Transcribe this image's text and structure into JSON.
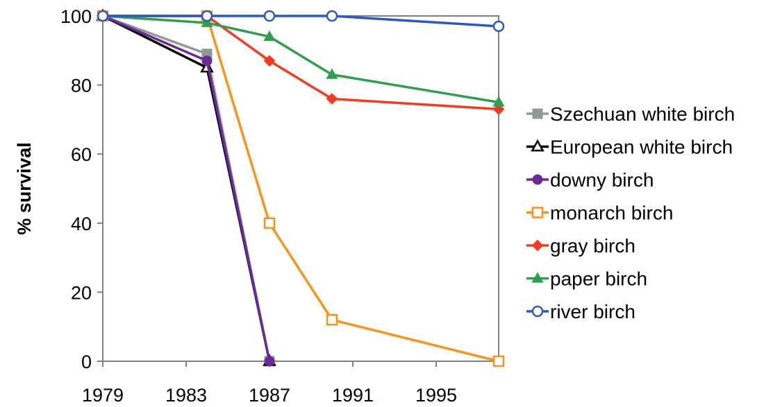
{
  "chart_data": {
    "type": "line",
    "title": "",
    "xlabel": "",
    "ylabel": "% survival",
    "xlim": [
      1979,
      1998
    ],
    "ylim": [
      0,
      100
    ],
    "xticks": [
      1979,
      1983,
      1987,
      1991,
      1995
    ],
    "yticks": [
      0,
      20,
      40,
      60,
      80,
      100
    ],
    "grid": false,
    "legend_position": "right",
    "series": [
      {
        "name": "Szechuan white birch",
        "color": "#8e9a9a",
        "marker": "square-filled",
        "x": [
          1979,
          1984,
          1987
        ],
        "y": [
          100,
          89,
          0
        ]
      },
      {
        "name": "European white birch",
        "color": "#000000",
        "marker": "triangle-open",
        "x": [
          1979,
          1984,
          1987
        ],
        "y": [
          100,
          85,
          0
        ]
      },
      {
        "name": "downy birch",
        "color": "#6a2a9a",
        "marker": "circle-filled",
        "x": [
          1979,
          1984,
          1987
        ],
        "y": [
          100,
          87,
          0
        ]
      },
      {
        "name": "monarch birch",
        "color": "#f7941d",
        "marker": "square-open",
        "x": [
          1979,
          1984,
          1987,
          1990,
          1998
        ],
        "y": [
          100,
          100,
          40,
          12,
          0
        ]
      },
      {
        "name": "gray birch",
        "color": "#f43a1f",
        "marker": "diamond-filled",
        "x": [
          1979,
          1984,
          1987,
          1990,
          1998
        ],
        "y": [
          100,
          100,
          87,
          76,
          73
        ]
      },
      {
        "name": "paper birch",
        "color": "#2ca04c",
        "marker": "triangle-filled",
        "x": [
          1979,
          1984,
          1987,
          1990,
          1998
        ],
        "y": [
          100,
          98,
          94,
          83,
          75
        ]
      },
      {
        "name": "river birch",
        "color": "#2a58c8",
        "marker": "circle-open",
        "x": [
          1979,
          1984,
          1987,
          1990,
          1998
        ],
        "y": [
          100,
          100,
          100,
          100,
          97
        ]
      }
    ]
  }
}
